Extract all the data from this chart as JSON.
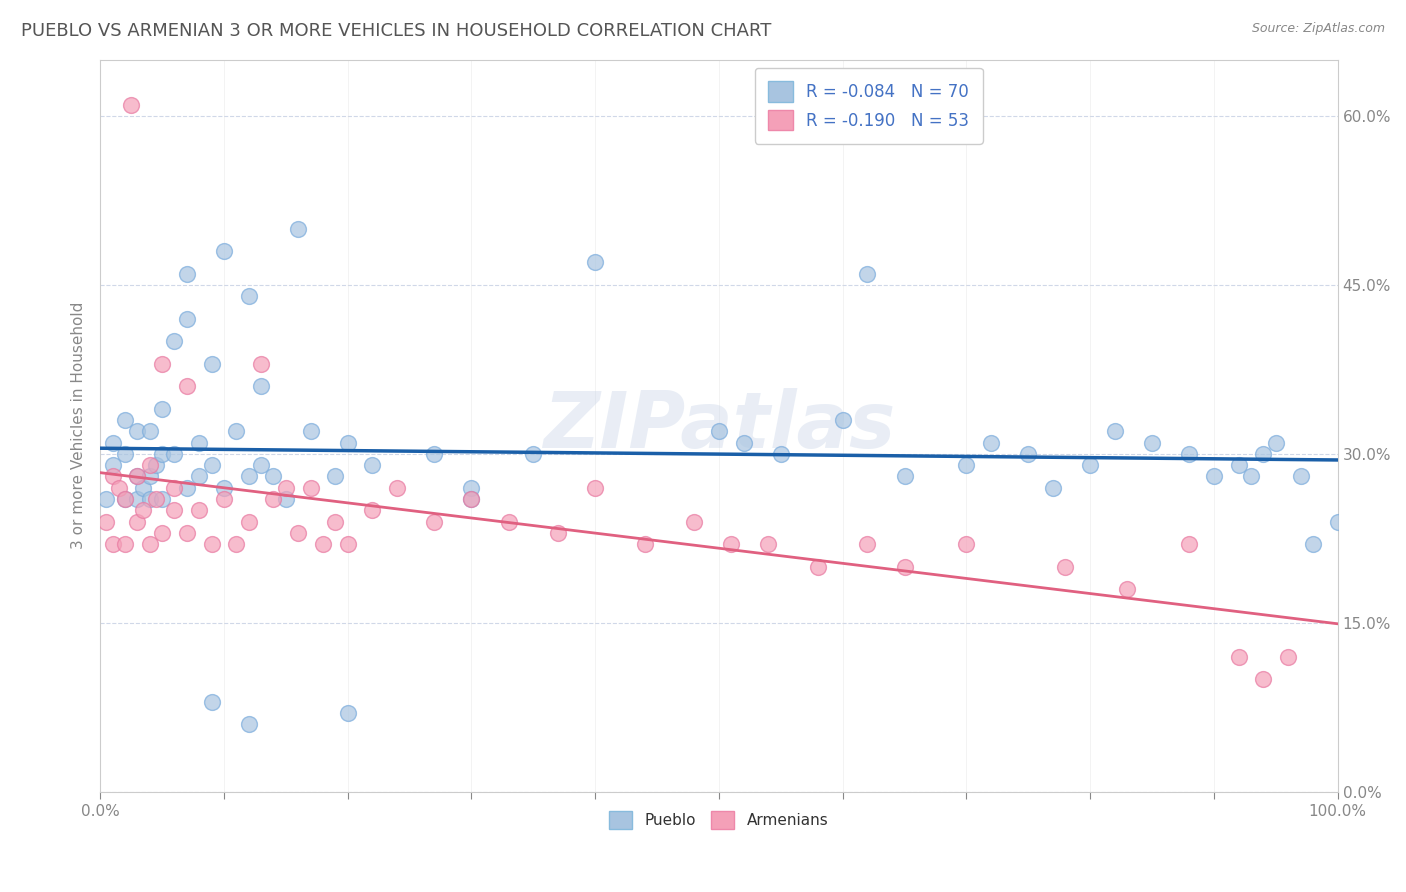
{
  "title": "PUEBLO VS ARMENIAN 3 OR MORE VEHICLES IN HOUSEHOLD CORRELATION CHART",
  "source": "Source: ZipAtlas.com",
  "ylabel": "3 or more Vehicles in Household",
  "watermark": "ZIPatlas",
  "pueblo_R": -0.084,
  "pueblo_N": 70,
  "armenian_R": -0.19,
  "armenian_N": 53,
  "pueblo_color": "#a8c4e0",
  "armenian_color": "#f4a0b8",
  "pueblo_line_color": "#1a5fa8",
  "armenian_line_color": "#e06080",
  "xlim": [
    0.0,
    1.0
  ],
  "ylim": [
    0.0,
    0.65
  ],
  "ytick_positions": [
    0.0,
    0.15,
    0.3,
    0.45,
    0.6
  ],
  "ytick_labels": [
    "0.0%",
    "15.0%",
    "30.0%",
    "45.0%",
    "60.0%"
  ],
  "xtick_positions": [
    0.0,
    0.1,
    0.2,
    0.3,
    0.4,
    0.5,
    0.6,
    0.7,
    0.8,
    0.9,
    1.0
  ],
  "xtick_labels_show": [
    0.0,
    1.0
  ],
  "legend_labels": [
    "Pueblo",
    "Armenians"
  ],
  "background_color": "#ffffff",
  "grid_color": "#d0d8e8",
  "title_color": "#555555",
  "axis_label_color": "#888888",
  "tick_color": "#4472c4",
  "source_color": "#888888",
  "pueblo_x": [
    0.005,
    0.01,
    0.01,
    0.02,
    0.02,
    0.02,
    0.03,
    0.03,
    0.03,
    0.035,
    0.04,
    0.04,
    0.04,
    0.045,
    0.05,
    0.05,
    0.05,
    0.06,
    0.06,
    0.07,
    0.07,
    0.07,
    0.08,
    0.08,
    0.09,
    0.09,
    0.1,
    0.1,
    0.11,
    0.12,
    0.12,
    0.13,
    0.13,
    0.14,
    0.15,
    0.16,
    0.17,
    0.19,
    0.2,
    0.22,
    0.27,
    0.3,
    0.35,
    0.4,
    0.5,
    0.52,
    0.55,
    0.6,
    0.62,
    0.65,
    0.7,
    0.72,
    0.75,
    0.77,
    0.8,
    0.82,
    0.85,
    0.88,
    0.9,
    0.92,
    0.93,
    0.94,
    0.95,
    0.97,
    0.98,
    1.0,
    0.09,
    0.12,
    0.2,
    0.3
  ],
  "pueblo_y": [
    0.26,
    0.29,
    0.31,
    0.26,
    0.3,
    0.33,
    0.26,
    0.28,
    0.32,
    0.27,
    0.26,
    0.28,
    0.32,
    0.29,
    0.26,
    0.3,
    0.34,
    0.3,
    0.4,
    0.27,
    0.42,
    0.46,
    0.28,
    0.31,
    0.38,
    0.29,
    0.48,
    0.27,
    0.32,
    0.44,
    0.28,
    0.36,
    0.29,
    0.28,
    0.26,
    0.5,
    0.32,
    0.28,
    0.31,
    0.29,
    0.3,
    0.27,
    0.3,
    0.47,
    0.32,
    0.31,
    0.3,
    0.33,
    0.46,
    0.28,
    0.29,
    0.31,
    0.3,
    0.27,
    0.29,
    0.32,
    0.31,
    0.3,
    0.28,
    0.29,
    0.28,
    0.3,
    0.31,
    0.28,
    0.22,
    0.24,
    0.08,
    0.06,
    0.07,
    0.26
  ],
  "armenian_x": [
    0.005,
    0.01,
    0.01,
    0.015,
    0.02,
    0.02,
    0.025,
    0.03,
    0.03,
    0.035,
    0.04,
    0.04,
    0.045,
    0.05,
    0.05,
    0.06,
    0.06,
    0.07,
    0.07,
    0.08,
    0.09,
    0.1,
    0.11,
    0.12,
    0.13,
    0.14,
    0.15,
    0.16,
    0.17,
    0.18,
    0.19,
    0.2,
    0.22,
    0.24,
    0.27,
    0.3,
    0.33,
    0.37,
    0.4,
    0.44,
    0.48,
    0.51,
    0.54,
    0.58,
    0.62,
    0.65,
    0.7,
    0.78,
    0.83,
    0.88,
    0.92,
    0.94,
    0.96
  ],
  "armenian_y": [
    0.24,
    0.22,
    0.28,
    0.27,
    0.22,
    0.26,
    0.61,
    0.24,
    0.28,
    0.25,
    0.22,
    0.29,
    0.26,
    0.23,
    0.38,
    0.25,
    0.27,
    0.23,
    0.36,
    0.25,
    0.22,
    0.26,
    0.22,
    0.24,
    0.38,
    0.26,
    0.27,
    0.23,
    0.27,
    0.22,
    0.24,
    0.22,
    0.25,
    0.27,
    0.24,
    0.26,
    0.24,
    0.23,
    0.27,
    0.22,
    0.24,
    0.22,
    0.22,
    0.2,
    0.22,
    0.2,
    0.22,
    0.2,
    0.18,
    0.22,
    0.12,
    0.1,
    0.12
  ]
}
